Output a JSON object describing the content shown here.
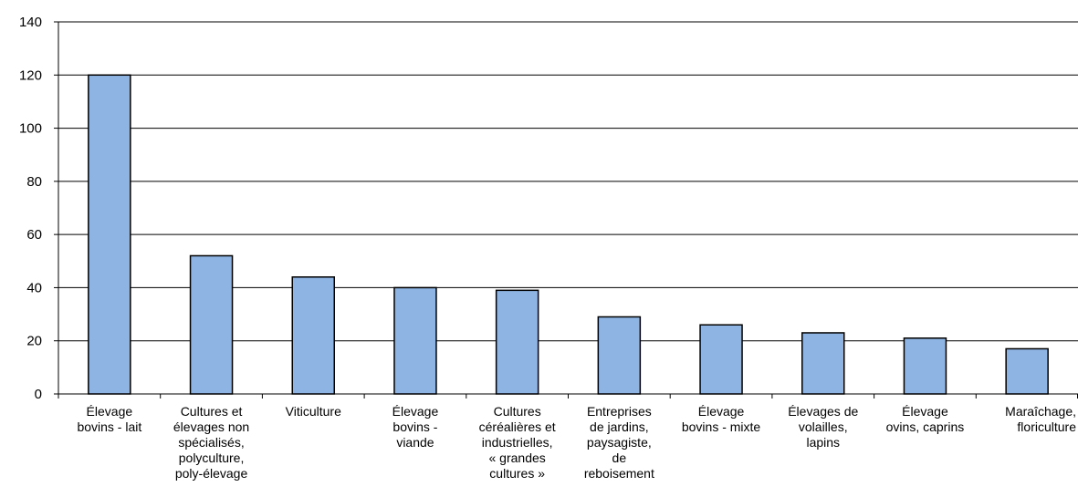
{
  "chart_data": {
    "type": "bar",
    "title": "",
    "xlabel": "",
    "ylabel": "",
    "ylim": [
      0,
      140
    ],
    "yticks": [
      0,
      20,
      40,
      60,
      80,
      100,
      120,
      140
    ],
    "grid": true,
    "bar_color": "#8EB4E3",
    "categories": [
      [
        "Élevage",
        "bovins - lait"
      ],
      [
        "Cultures et",
        "élevages non",
        "spécialisés,",
        "polyculture,",
        "poly-élevage"
      ],
      [
        "Viticulture"
      ],
      [
        "Élevage",
        "bovins -",
        "viande"
      ],
      [
        "Cultures",
        "céréalières et",
        "industrielles,",
        "« grandes",
        "cultures »"
      ],
      [
        "Entreprises",
        "de jardins,",
        "paysagiste,",
        "de",
        "reboisement"
      ],
      [
        "Élevage",
        "bovins - mixte"
      ],
      [
        "Élevages de",
        "volailles,",
        "lapins"
      ],
      [
        "Élevage",
        "ovins, caprins"
      ],
      [
        "Maraîchage,",
        "floriculture"
      ]
    ],
    "values": [
      120,
      52,
      44,
      40,
      39,
      29,
      26,
      23,
      21,
      17
    ]
  }
}
